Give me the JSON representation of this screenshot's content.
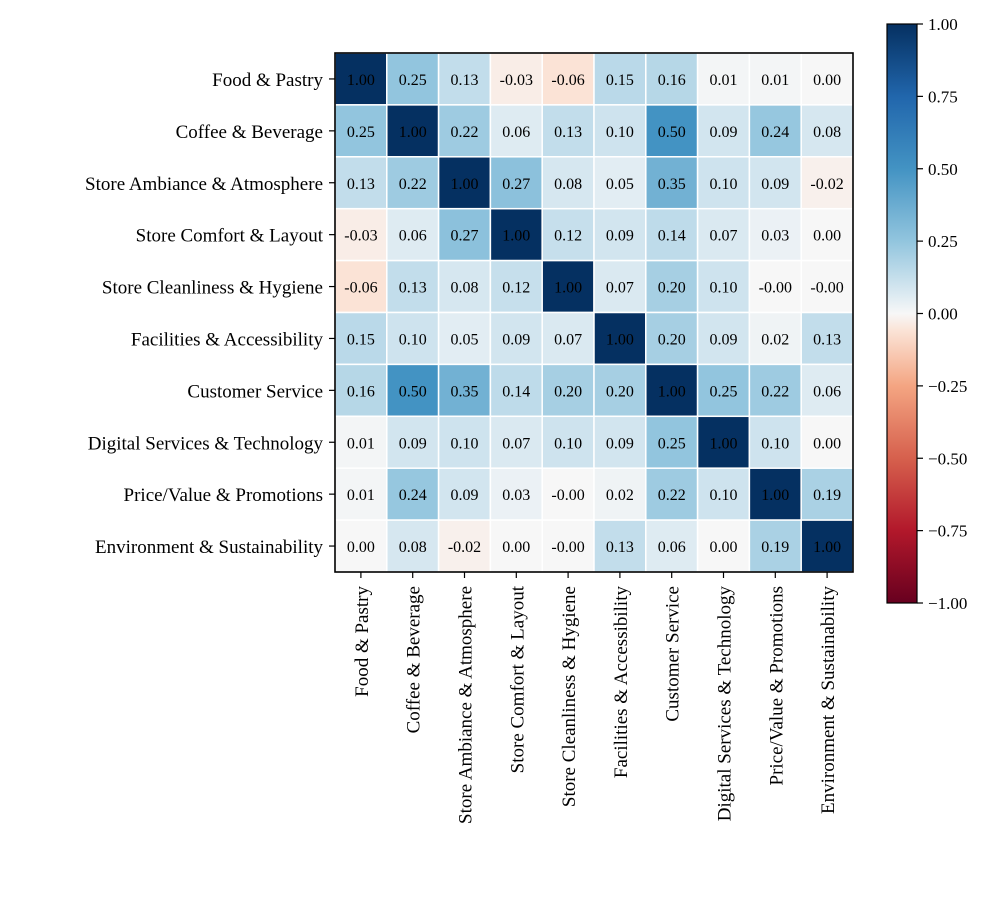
{
  "chart_data": {
    "type": "heatmap",
    "title": "",
    "xlabel": "",
    "ylabel": "",
    "categories": [
      "Food & Pastry",
      "Coffee & Beverage",
      "Store Ambiance & Atmosphere",
      "Store Comfort & Layout",
      "Store Cleanliness & Hygiene",
      "Facilities & Accessibility",
      "Customer Service",
      "Digital Services & Technology",
      "Price/Value & Promotions",
      "Environment & Sustainability"
    ],
    "matrix": [
      [
        1.0,
        0.25,
        0.13,
        -0.03,
        -0.06,
        0.15,
        0.16,
        0.01,
        0.01,
        0.0
      ],
      [
        0.25,
        1.0,
        0.22,
        0.06,
        0.13,
        0.1,
        0.5,
        0.09,
        0.24,
        0.08
      ],
      [
        0.13,
        0.22,
        1.0,
        0.27,
        0.08,
        0.05,
        0.35,
        0.1,
        0.09,
        -0.02
      ],
      [
        -0.03,
        0.06,
        0.27,
        1.0,
        0.12,
        0.09,
        0.14,
        0.07,
        0.03,
        0.0
      ],
      [
        -0.06,
        0.13,
        0.08,
        0.12,
        1.0,
        0.07,
        0.2,
        0.1,
        -0.0,
        -0.0
      ],
      [
        0.15,
        0.1,
        0.05,
        0.09,
        0.07,
        1.0,
        0.2,
        0.09,
        0.02,
        0.13
      ],
      [
        0.16,
        0.5,
        0.35,
        0.14,
        0.2,
        0.2,
        1.0,
        0.25,
        0.22,
        0.06
      ],
      [
        0.01,
        0.09,
        0.1,
        0.07,
        0.1,
        0.09,
        0.25,
        1.0,
        0.1,
        0.0
      ],
      [
        0.01,
        0.24,
        0.09,
        0.03,
        -0.0,
        0.02,
        0.22,
        0.1,
        1.0,
        0.19
      ],
      [
        0.0,
        0.08,
        -0.02,
        0.0,
        -0.0,
        0.13,
        0.06,
        0.0,
        0.19,
        1.0
      ]
    ],
    "value_labels": [
      [
        "1.00",
        "0.25",
        "0.13",
        "-0.03",
        "-0.06",
        "0.15",
        "0.16",
        "0.01",
        "0.01",
        "0.00"
      ],
      [
        "0.25",
        "1.00",
        "0.22",
        "0.06",
        "0.13",
        "0.10",
        "0.50",
        "0.09",
        "0.24",
        "0.08"
      ],
      [
        "0.13",
        "0.22",
        "1.00",
        "0.27",
        "0.08",
        "0.05",
        "0.35",
        "0.10",
        "0.09",
        "-0.02"
      ],
      [
        "-0.03",
        "0.06",
        "0.27",
        "1.00",
        "0.12",
        "0.09",
        "0.14",
        "0.07",
        "0.03",
        "0.00"
      ],
      [
        "-0.06",
        "0.13",
        "0.08",
        "0.12",
        "1.00",
        "0.07",
        "0.20",
        "0.10",
        "-0.00",
        "-0.00"
      ],
      [
        "0.15",
        "0.10",
        "0.05",
        "0.09",
        "0.07",
        "1.00",
        "0.20",
        "0.09",
        "0.02",
        "0.13"
      ],
      [
        "0.16",
        "0.50",
        "0.35",
        "0.14",
        "0.20",
        "0.20",
        "1.00",
        "0.25",
        "0.22",
        "0.06"
      ],
      [
        "0.01",
        "0.09",
        "0.10",
        "0.07",
        "0.10",
        "0.09",
        "0.25",
        "1.00",
        "0.10",
        "0.00"
      ],
      [
        "0.01",
        "0.24",
        "0.09",
        "0.03",
        "-0.00",
        "0.02",
        "0.22",
        "0.10",
        "1.00",
        "0.19"
      ],
      [
        "0.00",
        "0.08",
        "-0.02",
        "0.00",
        "-0.00",
        "0.13",
        "0.06",
        "0.00",
        "0.19",
        "1.00"
      ]
    ],
    "colormap": "RdBu",
    "vmin": -1.0,
    "vmax": 1.0,
    "colorbar": {
      "ticks": [
        1.0,
        0.75,
        0.5,
        0.25,
        0.0,
        -0.25,
        -0.5,
        -0.75,
        -1.0
      ],
      "tick_labels": [
        "1.00",
        "0.75",
        "0.50",
        "0.25",
        "0.00",
        "−0.25",
        "−0.50",
        "−0.75",
        "−1.00"
      ],
      "placement": "right"
    },
    "colors": {
      "cell_gap": "#ffffff",
      "frame": "#000000",
      "text_light": "#000000",
      "text_dark": "#000000"
    }
  }
}
